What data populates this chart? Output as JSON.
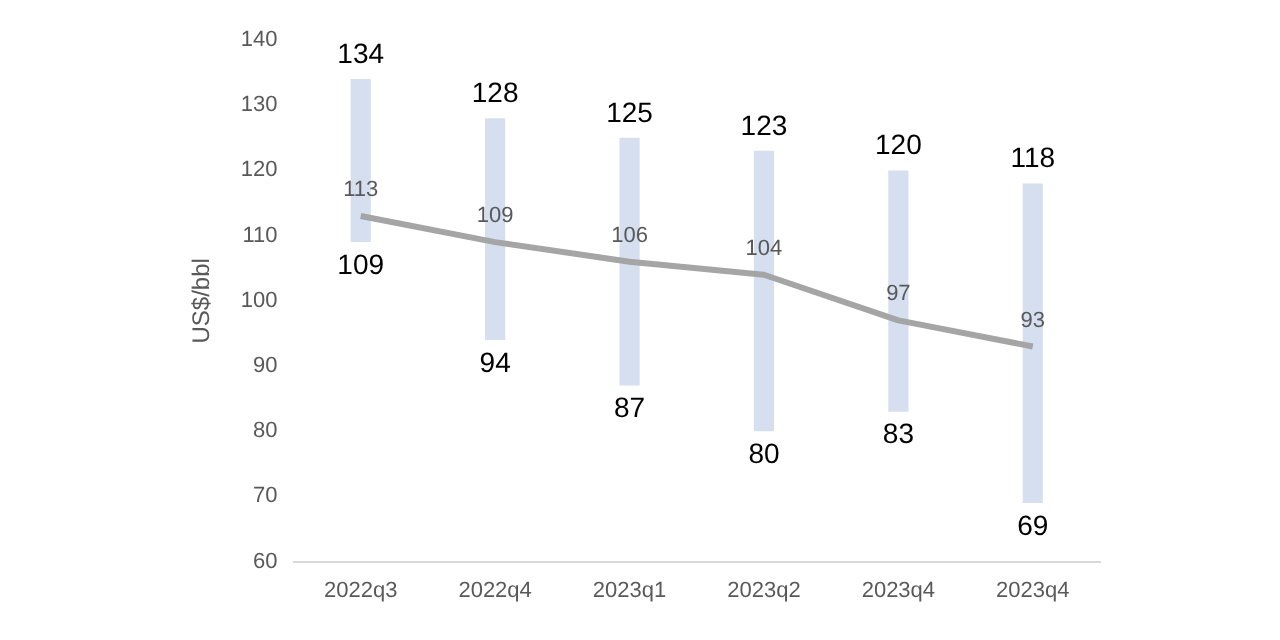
{
  "chart_data": {
    "type": "bar",
    "ylabel": "US$/bbl",
    "categories": [
      "2022q3",
      "2022q4",
      "2023q1",
      "2023q2",
      "2023q4",
      "2023q4"
    ],
    "ylim": [
      60,
      140
    ],
    "yticks": [
      60,
      70,
      80,
      90,
      100,
      110,
      120,
      130,
      140
    ],
    "grid": false,
    "legend": false,
    "series": [
      {
        "color": "#d5dff0",
        "base": [
          109,
          94,
          87,
          80,
          83,
          69
        ],
        "values": [
          25,
          34,
          38,
          43,
          37,
          49
        ]
      },
      {
        "type": "line",
        "color": "#a5a5a5",
        "values": [
          113,
          109,
          106,
          104,
          97,
          93
        ],
        "value_labels": [
          "113",
          "109",
          "106",
          "104",
          "97",
          "93"
        ],
        "marker": "none"
      }
    ],
    "annotations": [
      {
        "text": "134",
        "x": "2022q3",
        "y": 134
      },
      {
        "text": "109",
        "x": "2022q3",
        "y": 109
      },
      {
        "text": "128",
        "x": "2022q4",
        "y": 128
      },
      {
        "text": "94",
        "x": "2022q4",
        "y": 94
      },
      {
        "text": "125",
        "x": "2023q1",
        "y": 125
      },
      {
        "text": "87",
        "x": "2023q1",
        "y": 87
      },
      {
        "text": "123",
        "x": "2023q2",
        "y": 123
      },
      {
        "text": "80",
        "x": "2023q2",
        "y": 80
      },
      {
        "text": "120",
        "x": "2023q4",
        "y": 120
      },
      {
        "text": "83",
        "x": "2023q4",
        "y": 83
      },
      "118",
      "69"
    ]
  }
}
